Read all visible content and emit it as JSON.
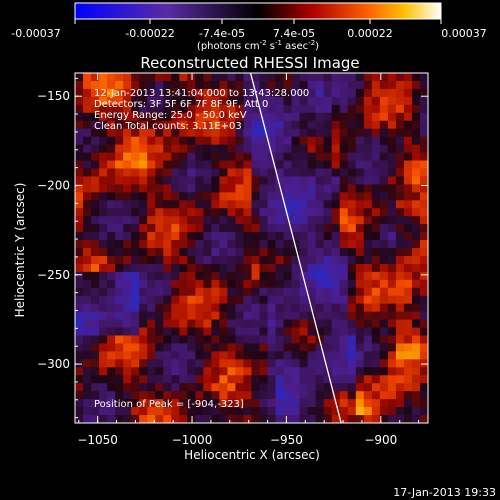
{
  "colorbar": {
    "tick_labels": [
      "-0.00037",
      "-0.00022",
      "-7.4e-05",
      "7.4e-05",
      "0.00022",
      "0.00037"
    ],
    "unit_main": "(photons cm",
    "unit_sup1": "-2",
    "unit_mid1": " s",
    "unit_sup2": "-1",
    "unit_mid2": " asec",
    "unit_sup3": "-2",
    "unit_end": ")"
  },
  "plot": {
    "title": "Reconstructed RHESSI Image",
    "xlabel": "Heliocentric X (arcsec)",
    "ylabel": "Heliocentric Y (arcsec)",
    "xlim": [
      -1062,
      -875
    ],
    "ylim": [
      -333,
      -137
    ],
    "x_ticks": [
      -1050,
      -1000,
      -950,
      -900
    ],
    "x_tick_labels": [
      "−1050",
      "−1000",
      "−950",
      "−900"
    ],
    "y_ticks": [
      -150,
      -200,
      -250,
      -300
    ],
    "y_tick_labels": [
      "−150",
      "−200",
      "−250",
      "−300"
    ],
    "info_lines": [
      "12-Jan-2013 13:41:04.000 to 13:43:28.000",
      "Detectors: 3F 5F 6F 7F 8F 9F, Att 0",
      "Energy Range: 25.0 - 50.0 keV",
      "Clean    Total counts: 3.11E+03"
    ],
    "peak_label": "Position of Peak = [-904,-323]",
    "peak_position": [
      -904,
      -323
    ],
    "limb_x_at_top": -969,
    "limb_x_at_bottom": -921
  },
  "timestamp": "17-Jan-2013 19:33"
}
